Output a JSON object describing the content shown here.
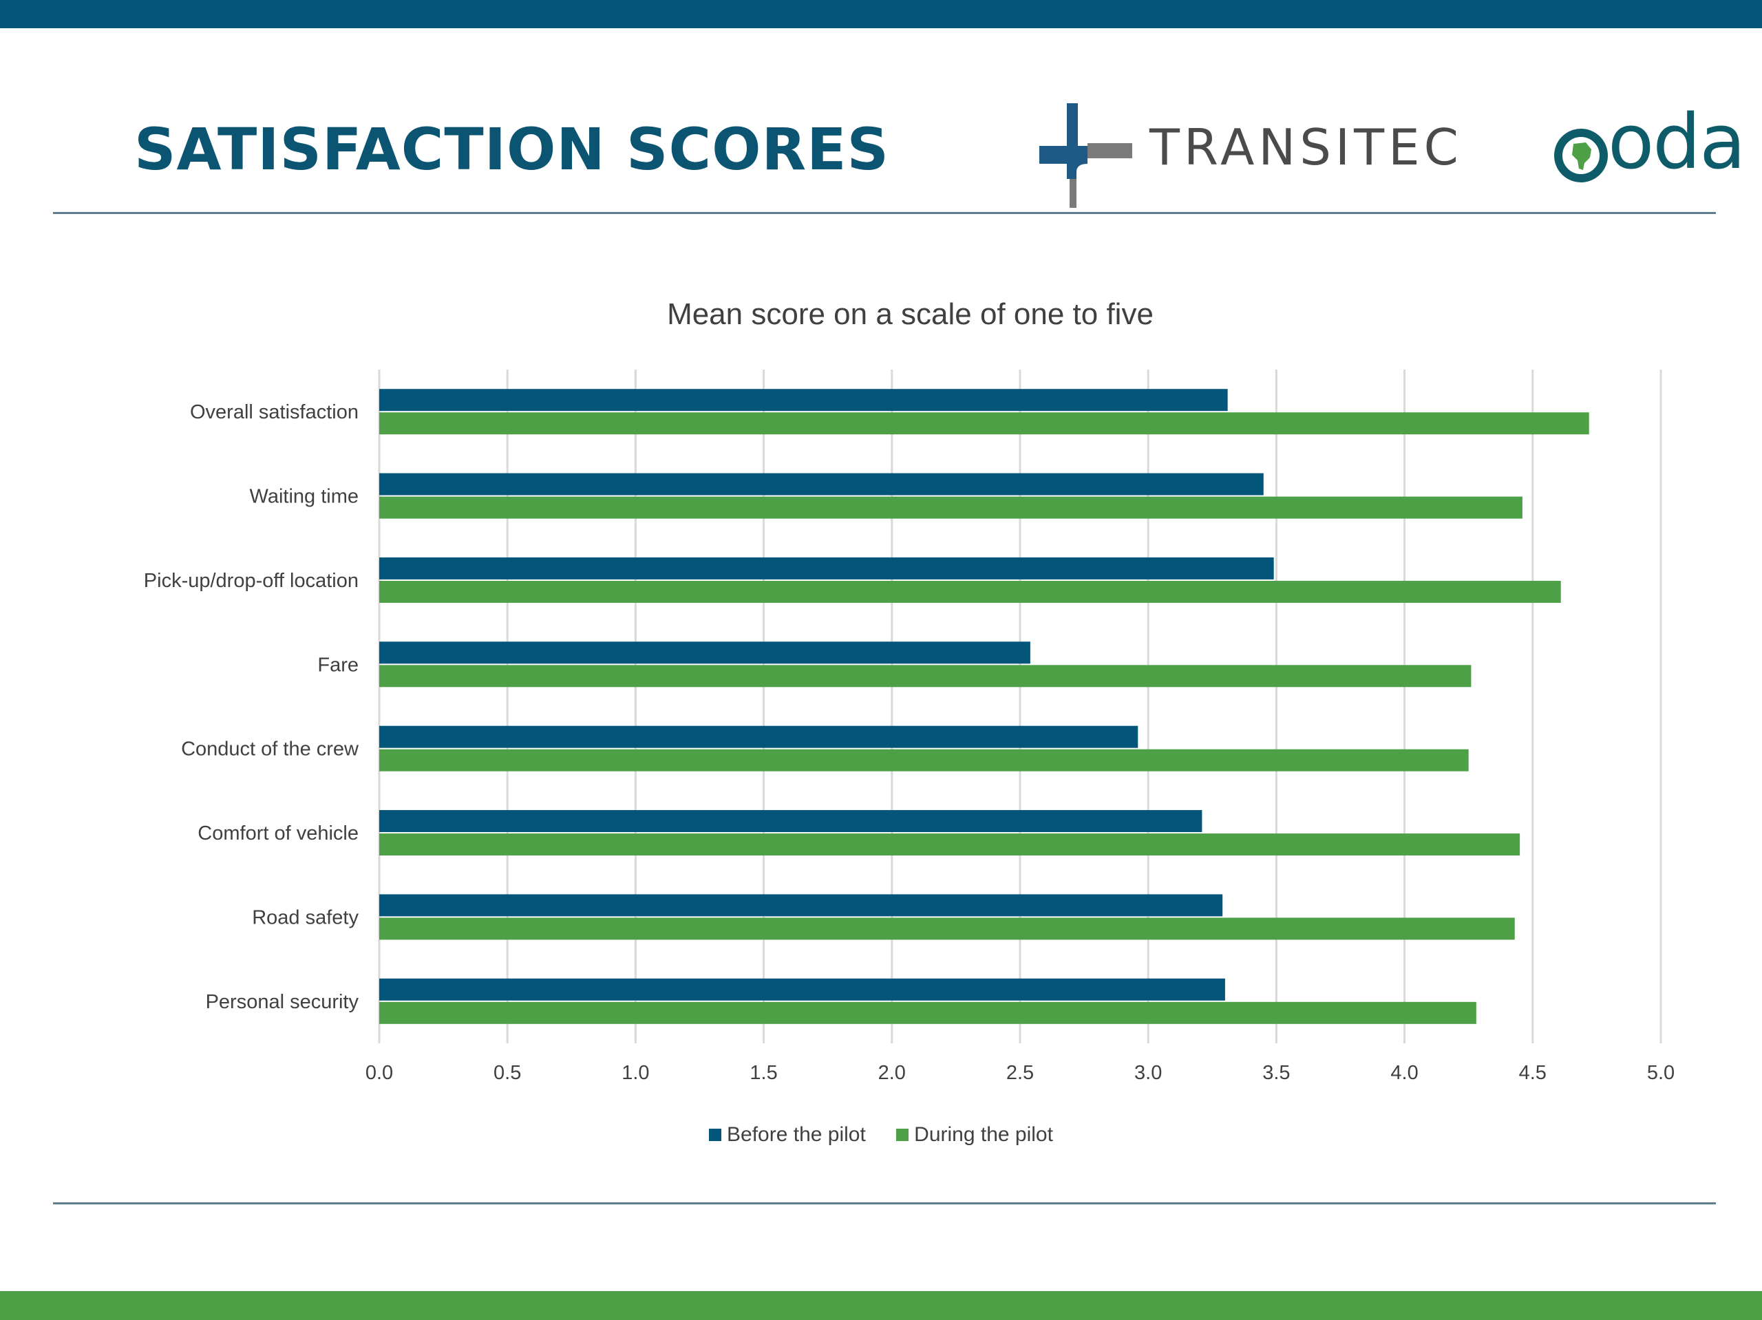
{
  "slide": {
    "title": "SATISFACTION SCORES",
    "logo_transitec": "TRANSITEC",
    "logo_oda": "oda"
  },
  "colors": {
    "top_band": "#03567a",
    "bottom_band": "#4ea047",
    "title": "#0b5573",
    "before_series": "#03567a",
    "during_series": "#4ea047",
    "gridline": "#d9d9d9",
    "axis_text": "#404040"
  },
  "chart_data": {
    "type": "bar",
    "orientation": "horizontal",
    "title": "Mean score on a scale of one to five",
    "categories": [
      "Overall satisfaction",
      "Waiting time",
      "Pick-up/drop-off location",
      "Fare",
      "Conduct of the crew",
      "Comfort of vehicle",
      "Road safety",
      "Personal security"
    ],
    "series": [
      {
        "name": "Before the pilot",
        "values": [
          3.31,
          3.45,
          3.49,
          2.54,
          2.96,
          3.21,
          3.29,
          3.3
        ]
      },
      {
        "name": "During the pilot",
        "values": [
          4.72,
          4.46,
          4.61,
          4.26,
          4.25,
          4.45,
          4.43,
          4.28
        ]
      }
    ],
    "xlim": [
      0,
      5
    ],
    "xticks": [
      "0.0",
      "0.5",
      "1.0",
      "1.5",
      "2.0",
      "2.5",
      "3.0",
      "3.5",
      "4.0",
      "4.5",
      "5.0"
    ],
    "xlabel": "",
    "ylabel": "",
    "grid": true,
    "legend_position": "bottom"
  }
}
